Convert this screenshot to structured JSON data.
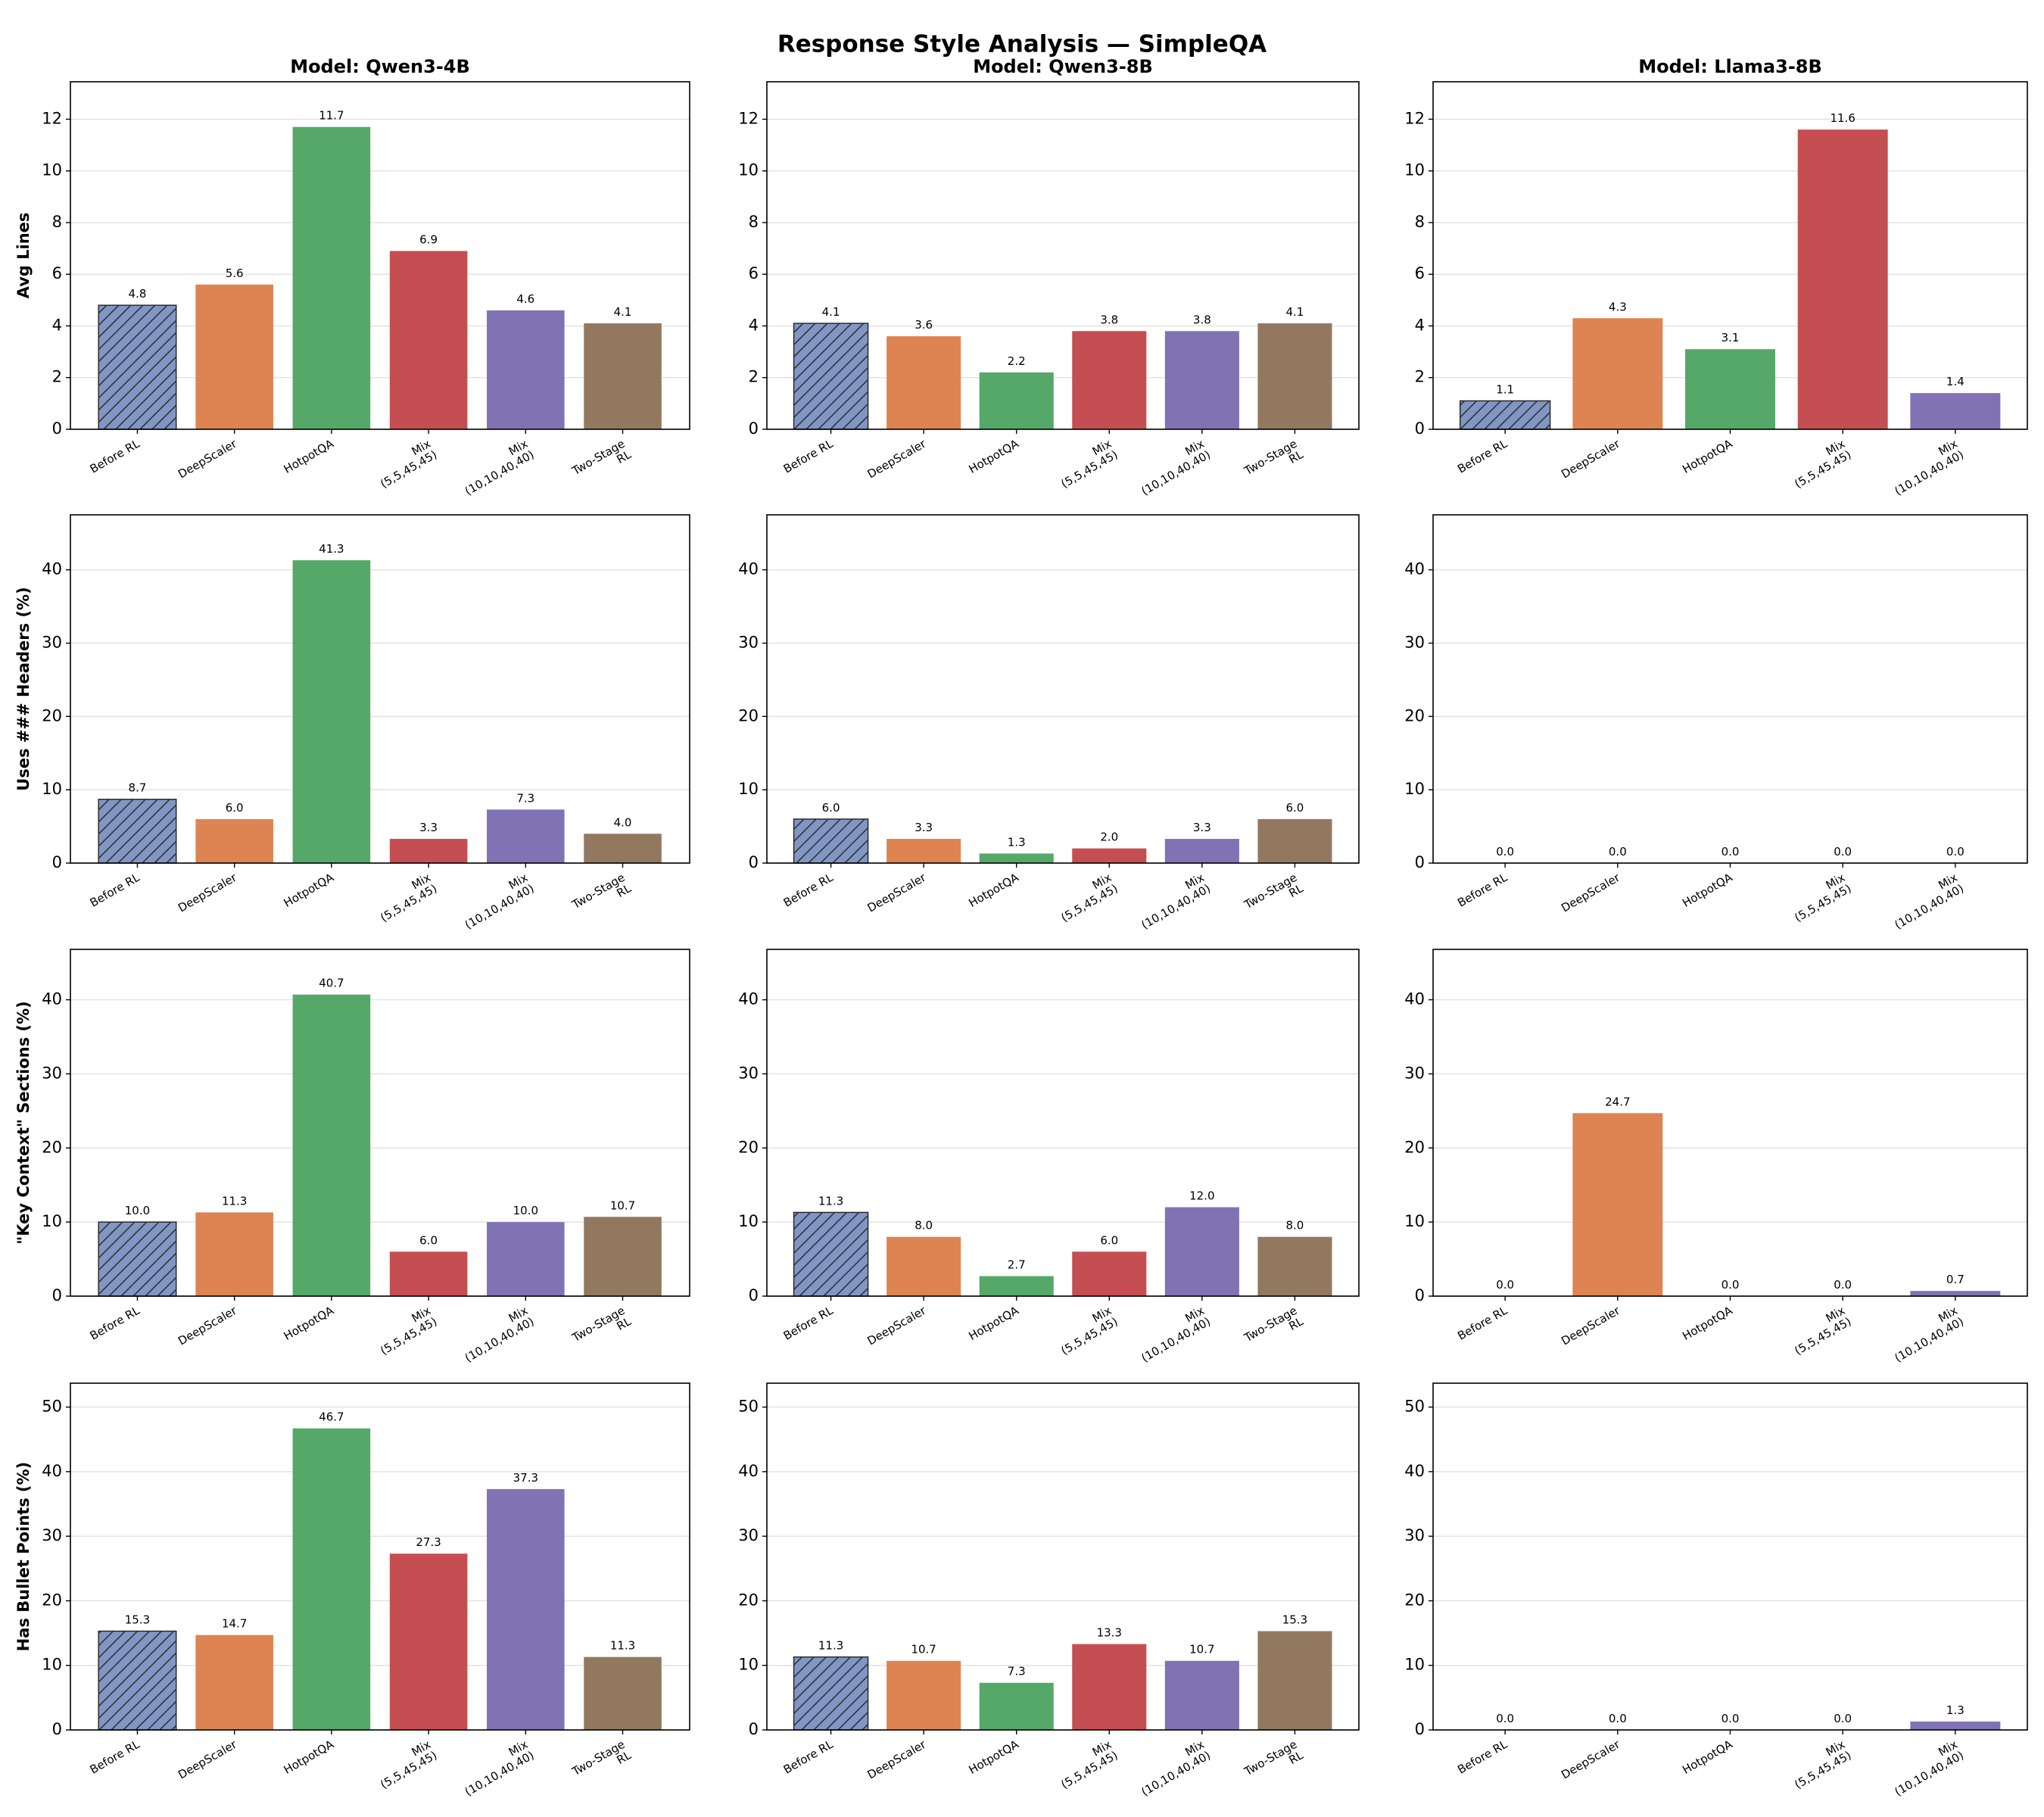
{
  "title": "Response Style Analysis — SimpleQA",
  "chart_data": [
    {
      "type": "bar",
      "title": "Model: Qwen3-4B",
      "ylabel": "Avg Lines",
      "categories": [
        "Before RL",
        "DeepScaler",
        "HotpotQA",
        "Mix\n(5,5,45,45)",
        "Mix\n(10,10,40,40)",
        "Two-Stage\nRL"
      ],
      "values": [
        4.8,
        5.6,
        11.7,
        6.9,
        4.6,
        4.1
      ],
      "value_labels": [
        "4.8",
        "5.6",
        "11.7",
        "6.9",
        "4.6",
        "4.1"
      ],
      "colors": [
        "#8096c4",
        "#dd8452",
        "#55a868",
        "#c44e52",
        "#8172b3",
        "#937860"
      ],
      "hatch": [
        true,
        false,
        false,
        false,
        false,
        false
      ],
      "ylim": [
        0,
        13.45
      ],
      "yticks": [
        0,
        2,
        4,
        6,
        8,
        10,
        12
      ],
      "grid": true
    },
    {
      "type": "bar",
      "title": "Model: Qwen3-8B",
      "categories": [
        "Before RL",
        "DeepScaler",
        "HotpotQA",
        "Mix\n(5,5,45,45)",
        "Mix\n(10,10,40,40)",
        "Two-Stage\nRL"
      ],
      "values": [
        4.1,
        3.6,
        2.2,
        3.8,
        3.8,
        4.1
      ],
      "value_labels": [
        "4.1",
        "3.6",
        "2.2",
        "3.8",
        "3.8",
        "4.1"
      ],
      "colors": [
        "#8096c4",
        "#dd8452",
        "#55a868",
        "#c44e52",
        "#8172b3",
        "#937860"
      ],
      "hatch": [
        true,
        false,
        false,
        false,
        false,
        false
      ],
      "ylim": [
        0,
        13.45
      ],
      "yticks": [
        0,
        2,
        4,
        6,
        8,
        10,
        12
      ],
      "grid": true
    },
    {
      "type": "bar",
      "title": "Model: Llama3-8B",
      "categories": [
        "Before RL",
        "DeepScaler",
        "HotpotQA",
        "Mix\n(5,5,45,45)",
        "Mix\n(10,10,40,40)"
      ],
      "values": [
        1.1,
        4.3,
        3.1,
        11.6,
        1.4
      ],
      "value_labels": [
        "1.1",
        "4.3",
        "3.1",
        "11.6",
        "1.4"
      ],
      "colors": [
        "#8096c4",
        "#dd8452",
        "#55a868",
        "#c44e52",
        "#8172b3"
      ],
      "hatch": [
        true,
        false,
        false,
        false,
        false
      ],
      "ylim": [
        0,
        13.45
      ],
      "yticks": [
        0,
        2,
        4,
        6,
        8,
        10,
        12
      ],
      "grid": true
    },
    {
      "type": "bar",
      "ylabel": "Uses ### Headers (%)",
      "categories": [
        "Before RL",
        "DeepScaler",
        "HotpotQA",
        "Mix\n(5,5,45,45)",
        "Mix\n(10,10,40,40)",
        "Two-Stage\nRL"
      ],
      "values": [
        8.7,
        6.0,
        41.3,
        3.3,
        7.3,
        4.0
      ],
      "value_labels": [
        "8.7",
        "6.0",
        "41.3",
        "3.3",
        "7.3",
        "4.0"
      ],
      "colors": [
        "#8096c4",
        "#dd8452",
        "#55a868",
        "#c44e52",
        "#8172b3",
        "#937860"
      ],
      "hatch": [
        true,
        false,
        false,
        false,
        false,
        false
      ],
      "ylim": [
        0,
        47.5
      ],
      "yticks": [
        0,
        10,
        20,
        30,
        40
      ],
      "grid": true
    },
    {
      "type": "bar",
      "categories": [
        "Before RL",
        "DeepScaler",
        "HotpotQA",
        "Mix\n(5,5,45,45)",
        "Mix\n(10,10,40,40)",
        "Two-Stage\nRL"
      ],
      "values": [
        6.0,
        3.3,
        1.3,
        2.0,
        3.3,
        6.0
      ],
      "value_labels": [
        "6.0",
        "3.3",
        "1.3",
        "2.0",
        "3.3",
        "6.0"
      ],
      "colors": [
        "#8096c4",
        "#dd8452",
        "#55a868",
        "#c44e52",
        "#8172b3",
        "#937860"
      ],
      "hatch": [
        true,
        false,
        false,
        false,
        false,
        false
      ],
      "ylim": [
        0,
        47.5
      ],
      "yticks": [
        0,
        10,
        20,
        30,
        40
      ],
      "grid": true
    },
    {
      "type": "bar",
      "categories": [
        "Before RL",
        "DeepScaler",
        "HotpotQA",
        "Mix\n(5,5,45,45)",
        "Mix\n(10,10,40,40)"
      ],
      "values": [
        0,
        0,
        0,
        0,
        0
      ],
      "value_labels": [
        "0.0",
        "0.0",
        "0.0",
        "0.0",
        "0.0"
      ],
      "colors": [
        "#8096c4",
        "#dd8452",
        "#55a868",
        "#c44e52",
        "#8172b3"
      ],
      "hatch": [
        true,
        false,
        false,
        false,
        false
      ],
      "ylim": [
        0,
        47.5
      ],
      "yticks": [
        0,
        10,
        20,
        30,
        40
      ],
      "grid": true
    },
    {
      "type": "bar",
      "ylabel": "\"Key Context\" Sections (%)",
      "categories": [
        "Before RL",
        "DeepScaler",
        "HotpotQA",
        "Mix\n(5,5,45,45)",
        "Mix\n(10,10,40,40)",
        "Two-Stage\nRL"
      ],
      "values": [
        10.0,
        11.3,
        40.7,
        6.0,
        10.0,
        10.7
      ],
      "value_labels": [
        "10.0",
        "11.3",
        "40.7",
        "6.0",
        "10.0",
        "10.7"
      ],
      "colors": [
        "#8096c4",
        "#dd8452",
        "#55a868",
        "#c44e52",
        "#8172b3",
        "#937860"
      ],
      "hatch": [
        true,
        false,
        false,
        false,
        false,
        false
      ],
      "ylim": [
        0,
        46.8
      ],
      "yticks": [
        0,
        10,
        20,
        30,
        40
      ],
      "grid": true
    },
    {
      "type": "bar",
      "categories": [
        "Before RL",
        "DeepScaler",
        "HotpotQA",
        "Mix\n(5,5,45,45)",
        "Mix\n(10,10,40,40)",
        "Two-Stage\nRL"
      ],
      "values": [
        11.3,
        8.0,
        2.7,
        6.0,
        12.0,
        8.0
      ],
      "value_labels": [
        "11.3",
        "8.0",
        "2.7",
        "6.0",
        "12.0",
        "8.0"
      ],
      "colors": [
        "#8096c4",
        "#dd8452",
        "#55a868",
        "#c44e52",
        "#8172b3",
        "#937860"
      ],
      "hatch": [
        true,
        false,
        false,
        false,
        false,
        false
      ],
      "ylim": [
        0,
        46.8
      ],
      "yticks": [
        0,
        10,
        20,
        30,
        40
      ],
      "grid": true
    },
    {
      "type": "bar",
      "categories": [
        "Before RL",
        "DeepScaler",
        "HotpotQA",
        "Mix\n(5,5,45,45)",
        "Mix\n(10,10,40,40)"
      ],
      "values": [
        0,
        24.7,
        0,
        0,
        0.7
      ],
      "value_labels": [
        "0.0",
        "24.7",
        "0.0",
        "0.0",
        "0.7"
      ],
      "colors": [
        "#8096c4",
        "#dd8452",
        "#55a868",
        "#c44e52",
        "#8172b3"
      ],
      "hatch": [
        true,
        false,
        false,
        false,
        false
      ],
      "ylim": [
        0,
        46.8
      ],
      "yticks": [
        0,
        10,
        20,
        30,
        40
      ],
      "grid": true
    },
    {
      "type": "bar",
      "ylabel": "Has Bullet Points (%)",
      "categories": [
        "Before RL",
        "DeepScaler",
        "HotpotQA",
        "Mix\n(5,5,45,45)",
        "Mix\n(10,10,40,40)",
        "Two-Stage\nRL"
      ],
      "values": [
        15.3,
        14.7,
        46.7,
        27.3,
        37.3,
        11.3
      ],
      "value_labels": [
        "15.3",
        "14.7",
        "46.7",
        "27.3",
        "37.3",
        "11.3"
      ],
      "colors": [
        "#8096c4",
        "#dd8452",
        "#55a868",
        "#c44e52",
        "#8172b3",
        "#937860"
      ],
      "hatch": [
        true,
        false,
        false,
        false,
        false,
        false
      ],
      "ylim": [
        0,
        53.7
      ],
      "yticks": [
        0,
        10,
        20,
        30,
        40,
        50
      ],
      "grid": true
    },
    {
      "type": "bar",
      "categories": [
        "Before RL",
        "DeepScaler",
        "HotpotQA",
        "Mix\n(5,5,45,45)",
        "Mix\n(10,10,40,40)",
        "Two-Stage\nRL"
      ],
      "values": [
        11.3,
        10.7,
        7.3,
        13.3,
        10.7,
        15.3
      ],
      "value_labels": [
        "11.3",
        "10.7",
        "7.3",
        "13.3",
        "10.7",
        "15.3"
      ],
      "colors": [
        "#8096c4",
        "#dd8452",
        "#55a868",
        "#c44e52",
        "#8172b3",
        "#937860"
      ],
      "hatch": [
        true,
        false,
        false,
        false,
        false,
        false
      ],
      "ylim": [
        0,
        53.7
      ],
      "yticks": [
        0,
        10,
        20,
        30,
        40,
        50
      ],
      "grid": true
    },
    {
      "type": "bar",
      "categories": [
        "Before RL",
        "DeepScaler",
        "HotpotQA",
        "Mix\n(5,5,45,45)",
        "Mix\n(10,10,40,40)"
      ],
      "values": [
        0,
        0,
        0,
        0,
        1.3
      ],
      "value_labels": [
        "0.0",
        "0.0",
        "0.0",
        "0.0",
        "1.3"
      ],
      "colors": [
        "#8096c4",
        "#dd8452",
        "#55a868",
        "#c44e52",
        "#8172b3"
      ],
      "hatch": [
        true,
        false,
        false,
        false,
        false
      ],
      "ylim": [
        0,
        53.7
      ],
      "yticks": [
        0,
        10,
        20,
        30,
        40,
        50
      ],
      "grid": true
    }
  ]
}
